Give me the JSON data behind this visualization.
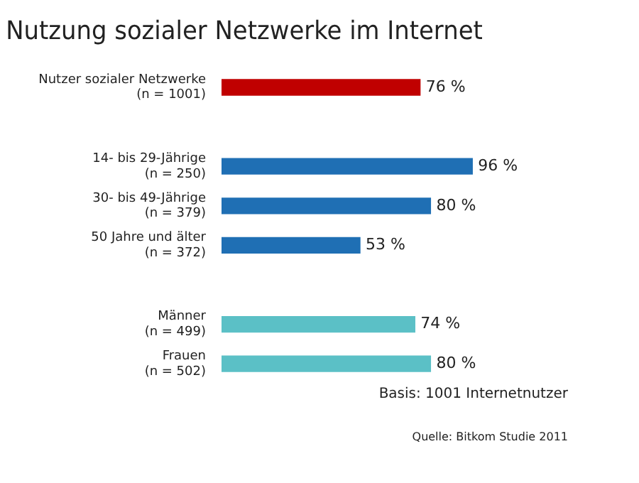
{
  "chart_data": {
    "type": "bar",
    "orientation": "horizontal",
    "title": "Nutzung sozialer Netzwerke im Internet",
    "categories": [
      "Nutzer sozialer Netzwerke\n(n = 1001)",
      null,
      "14- bis 29-Jährige\n(n = 250)",
      "30- bis 49-Jährige\n(n = 379)",
      "50 Jahre und älter\n(n = 372)",
      null,
      "Männer\n(n = 499)",
      "Frauen\n(n = 502)"
    ],
    "values": [
      76,
      null,
      96,
      80,
      53,
      null,
      74,
      80
    ],
    "colors": [
      "#c00000",
      null,
      "#1f6fb4",
      "#1f6fb4",
      "#1f6fb4",
      null,
      "#5bc0c6",
      "#5bc0c6"
    ],
    "value_labels": [
      "76 %",
      null,
      "96 %",
      "80 %",
      "53 %",
      null,
      "74 %",
      "80 %"
    ],
    "tick_labels": "y",
    "legend": false,
    "annotations": [
      "Basis: 1001 Internetnutzer",
      "Quelle: Bitkom Studie 2011"
    ]
  }
}
